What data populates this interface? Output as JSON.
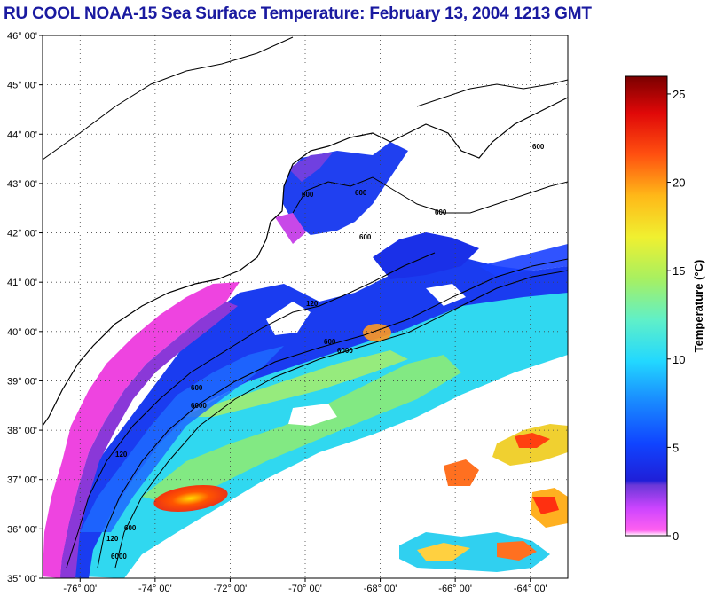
{
  "title": "RU COOL  NOAA-15  Sea Surface Temperature:  February 13, 2004 1213 GMT",
  "map": {
    "lat_labels": [
      "46° 00'",
      "45° 00'",
      "44° 00'",
      "43° 00'",
      "42° 00'",
      "41° 00'",
      "40° 00'",
      "39° 00'",
      "38° 00'",
      "37° 00'",
      "36° 00'",
      "35° 00'"
    ],
    "lon_labels": [
      "-76° 00'",
      "-74° 00'",
      "-72° 00'",
      "-70° 00'",
      "-68° 00'",
      "-66° 00'",
      "-64° 00'"
    ],
    "contour_labels": [
      "120",
      "600",
      "6000",
      "120",
      "600",
      "6000",
      "600",
      "600",
      "600",
      "120",
      "600",
      "6000",
      "600",
      "600"
    ]
  },
  "colorbar": {
    "label": "Temperature (°C)",
    "ticks": [
      "0",
      "5",
      "10",
      "15",
      "20",
      "25"
    ],
    "range": [
      0,
      26
    ],
    "colors": [
      "#ffffff",
      "#ff55ee",
      "#cc44ff",
      "#7a3ce0",
      "#1f1fd8",
      "#1040ff",
      "#1a90ff",
      "#22d8ff",
      "#60f0c8",
      "#a8f060",
      "#ecf030",
      "#ffc018",
      "#ff7010",
      "#ff1a08",
      "#c00000",
      "#7a0000"
    ]
  }
}
